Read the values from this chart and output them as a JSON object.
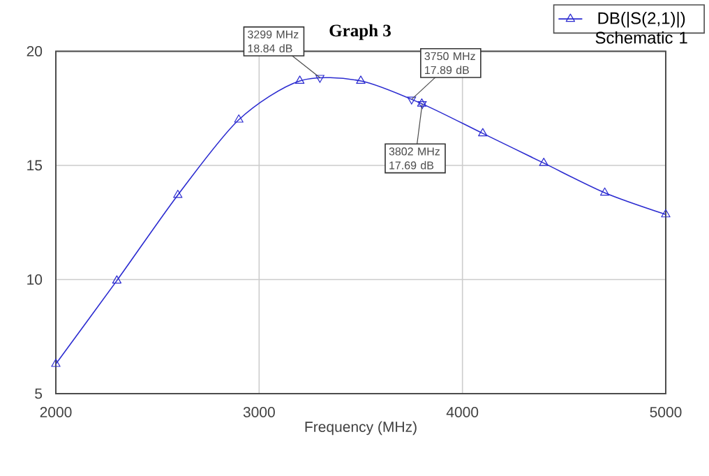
{
  "chart_data": {
    "type": "line",
    "title": "Graph 3",
    "xlabel": "Frequency (MHz)",
    "xlim": [
      2000,
      5000
    ],
    "ylim": [
      5,
      20
    ],
    "xticks": [
      2000,
      3000,
      4000,
      5000
    ],
    "yticks": [
      5,
      10,
      15,
      20
    ],
    "grid": true,
    "legend": "top right",
    "marker": "triangle",
    "series": [
      {
        "name": "DB(|S(2,1)|) Schematic 1",
        "color": "#2b2bd0",
        "x": [
          2000,
          2300,
          2600,
          2900,
          3200,
          3500,
          3800,
          4100,
          4400,
          4700,
          5000
        ],
        "values": [
          6.3,
          9.95,
          13.7,
          17.0,
          18.7,
          18.7,
          17.7,
          16.4,
          15.1,
          13.8,
          12.85
        ]
      }
    ],
    "annotations": [
      {
        "text": "3299 MHz 18.84 dB",
        "x": 3299,
        "y": 18.84
      },
      {
        "text": "3750 MHz 17.89 dB",
        "x": 3750,
        "y": 17.89
      },
      {
        "text": "3802 MHz 17.69 dB",
        "x": 3802,
        "y": 17.69
      }
    ]
  }
}
